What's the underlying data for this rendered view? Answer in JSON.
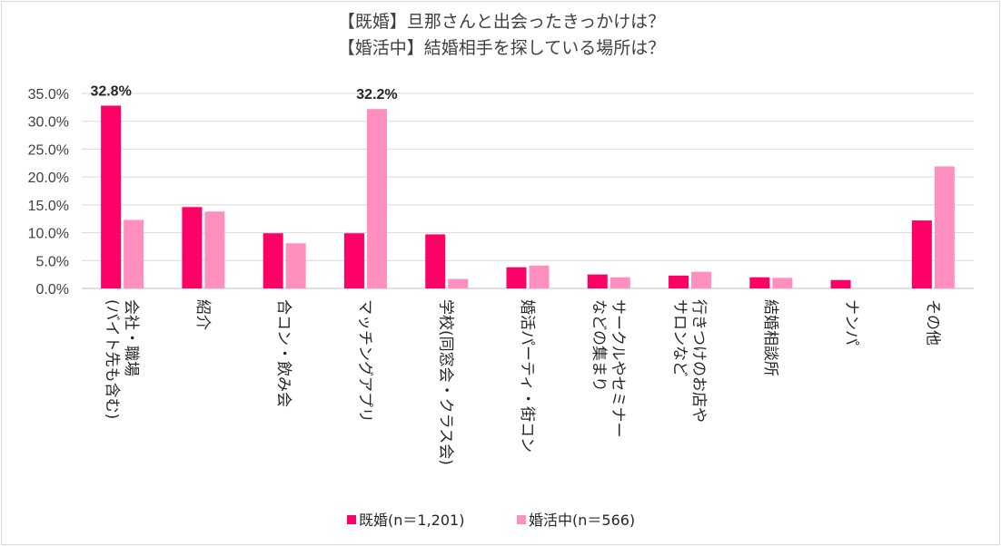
{
  "chart_data": {
    "type": "bar",
    "title_lines": [
      "【既婚】旦那さんと出会ったきっかけは？",
      "【婚活中】結婚相手を探している場所は？"
    ],
    "categories": [
      [
        "会社・職場",
        "(バイト先も含む)"
      ],
      [
        "紹介"
      ],
      [
        "合コン・飲み会"
      ],
      [
        "マッチングアプリ"
      ],
      [
        "学校(同窓会・クラス会)"
      ],
      [
        "婚活パーティ・街コン"
      ],
      [
        "サークルやセミナー",
        "などの集まり"
      ],
      [
        "行きつけのお店や",
        "サロンなど"
      ],
      [
        "結婚相談所"
      ],
      [
        "ナンパ"
      ],
      [
        "その他"
      ]
    ],
    "series": [
      {
        "name": "既婚(n＝1,201)",
        "color": "#ff0066",
        "values": [
          32.8,
          14.6,
          9.9,
          9.9,
          9.7,
          3.8,
          2.5,
          2.3,
          2.0,
          1.5,
          12.2
        ]
      },
      {
        "name": "婚活中(n＝566)",
        "color": "#ff8fbf",
        "values": [
          12.3,
          13.8,
          8.1,
          32.2,
          1.7,
          4.1,
          2.0,
          3.0,
          1.9,
          0.0,
          21.9
        ]
      }
    ],
    "data_labels": [
      {
        "series": 0,
        "index": 0,
        "text": "32.8%"
      },
      {
        "series": 1,
        "index": 3,
        "text": "32.2%"
      }
    ],
    "y_ticks": [
      "0.0%",
      "5.0%",
      "10.0%",
      "15.0%",
      "20.0%",
      "25.0%",
      "30.0%",
      "35.0%"
    ],
    "ylim": [
      0,
      35
    ],
    "grid": true,
    "legend_position": "bottom"
  }
}
